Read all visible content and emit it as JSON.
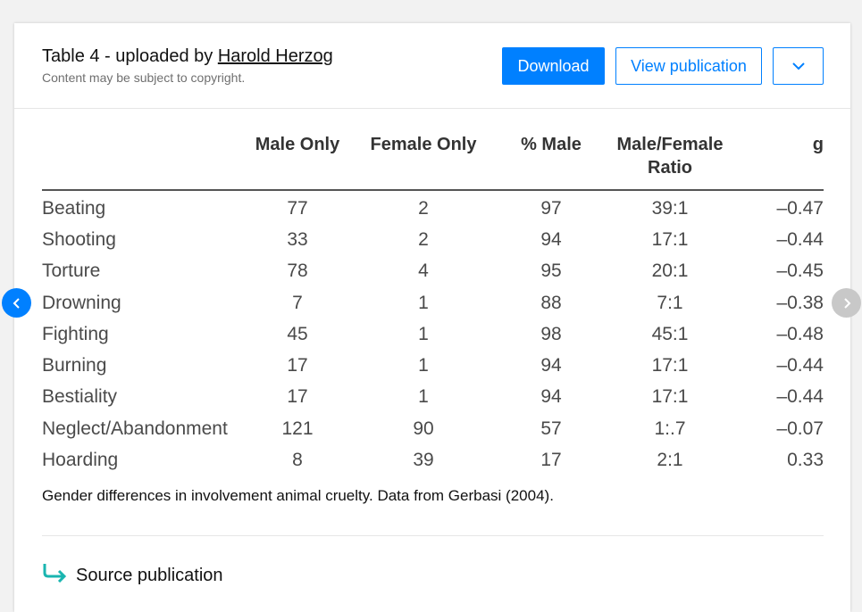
{
  "header": {
    "title_prefix": "Table 4 - uploaded by ",
    "uploader": "Harold Herzog",
    "copyright_note": "Content may be subject to copyright.",
    "download_label": "Download",
    "view_publication_label": "View publication",
    "more_icon": "chevron-down-icon"
  },
  "table": {
    "columns": [
      "",
      "Male Only",
      "Female Only",
      "% Male",
      "Male/Female Ratio",
      "g"
    ],
    "rows": [
      [
        "Beating",
        "77",
        "2",
        "97",
        "39:1",
        "–0.47"
      ],
      [
        "Shooting",
        "33",
        "2",
        "94",
        "17:1",
        "–0.44"
      ],
      [
        "Torture",
        "78",
        "4",
        "95",
        "20:1",
        "–0.45"
      ],
      [
        "Drowning",
        "7",
        "1",
        "88",
        "7:1",
        "–0.38"
      ],
      [
        "Fighting",
        "45",
        "1",
        "98",
        "45:1",
        "–0.48"
      ],
      [
        "Burning",
        "17",
        "1",
        "94",
        "17:1",
        "–0.44"
      ],
      [
        "Bestiality",
        "17",
        "1",
        "94",
        "17:1",
        "–0.44"
      ],
      [
        "Neglect/Abandonment",
        "121",
        "90",
        "57",
        "1:.7",
        "–0.07"
      ],
      [
        "Hoarding",
        "8",
        "39",
        "17",
        "2:1",
        "0.33"
      ]
    ]
  },
  "caption": "Gender differences in involvement animal cruelty. Data from Gerbasi (2004).",
  "source": {
    "label": "Source publication",
    "icon": "arrow-return-icon"
  },
  "nav": {
    "prev_icon": "chevron-left-icon",
    "next_icon": "chevron-right-icon"
  },
  "colors": {
    "accent": "#0080ff",
    "source_icon": "#1ab5b0",
    "nav_disabled": "#c8c8c8"
  }
}
